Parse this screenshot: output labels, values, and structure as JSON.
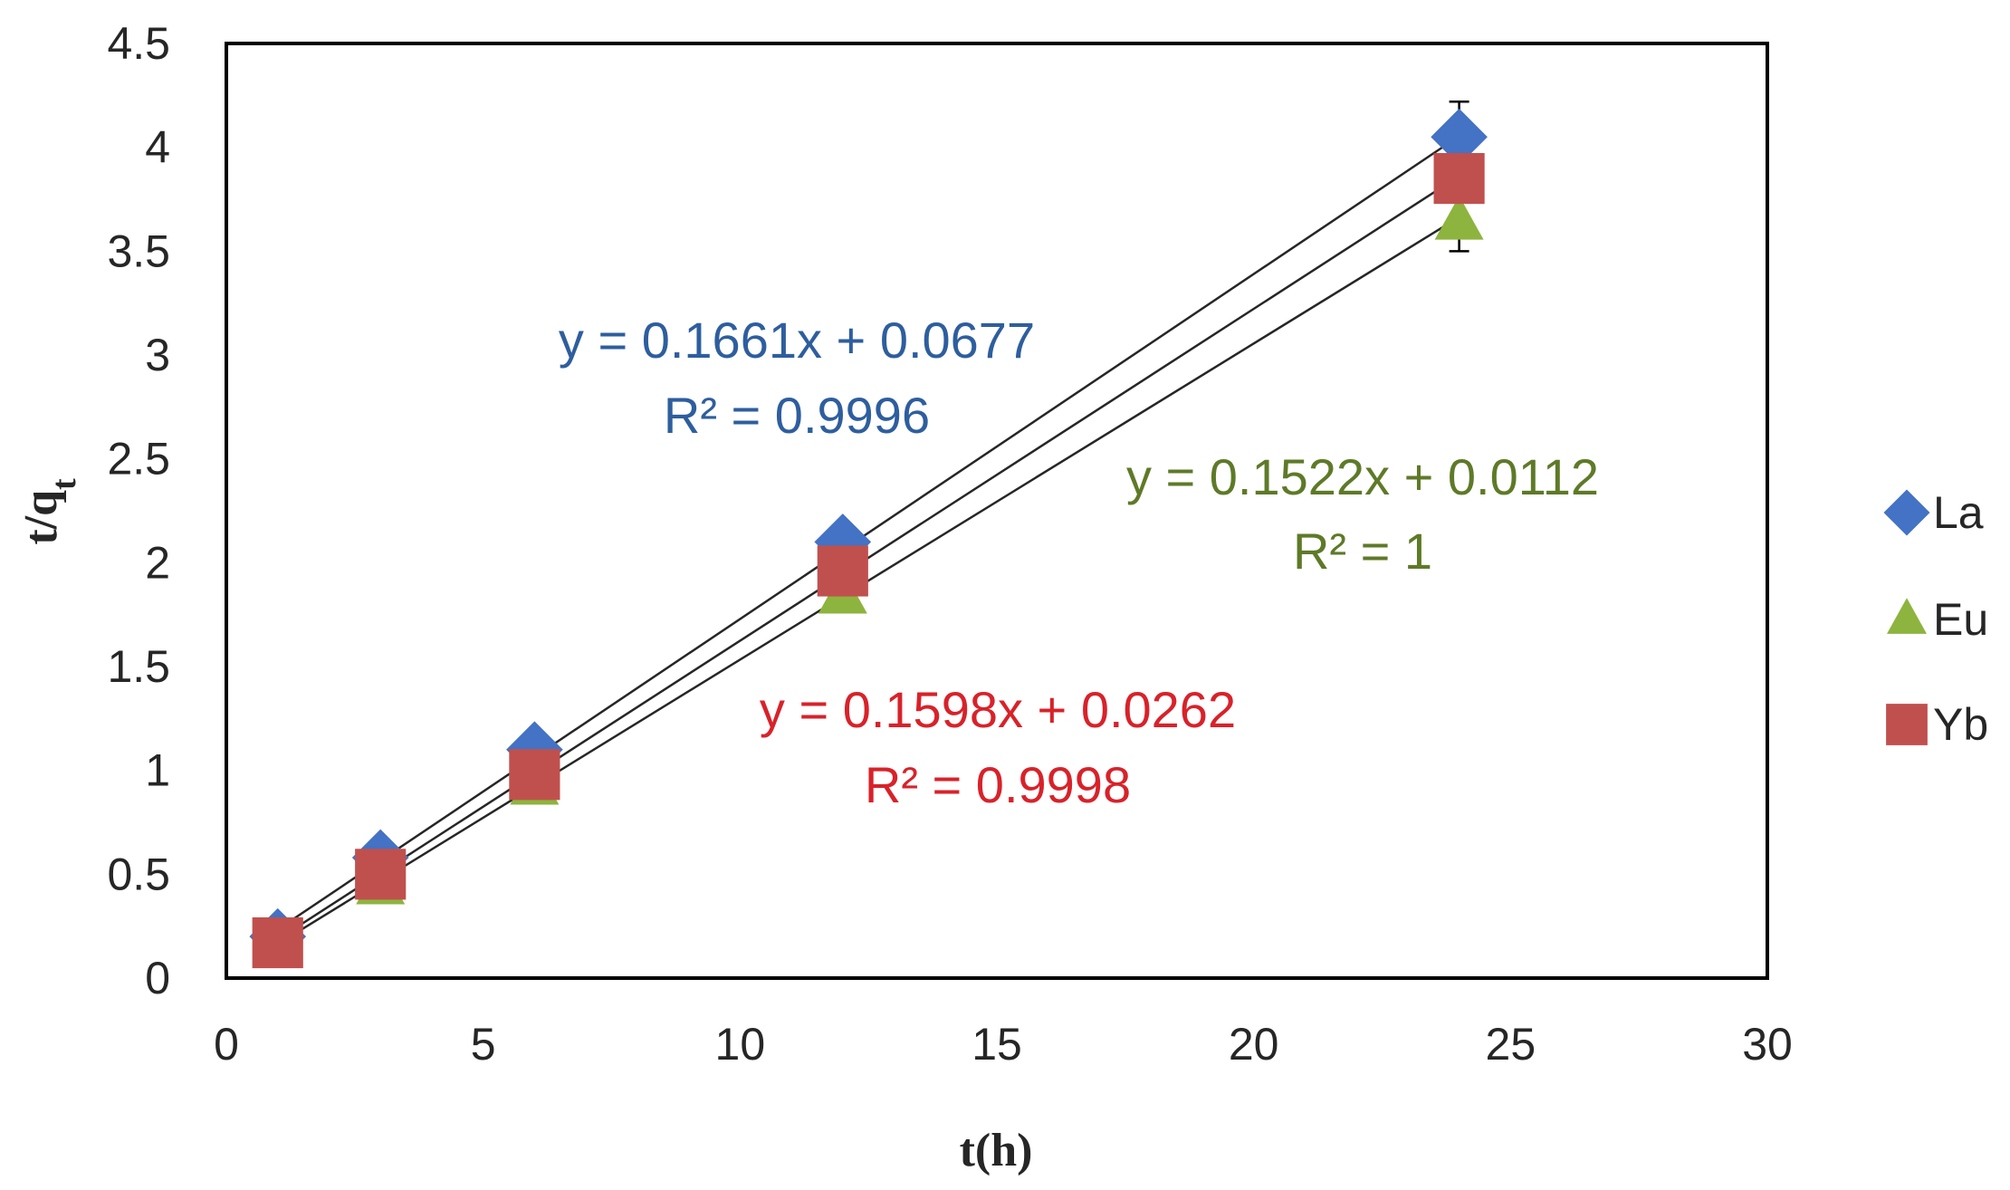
{
  "chart_data": {
    "type": "scatter",
    "xlabel": "t(h)",
    "ylabel": {
      "main": "t/q",
      "sub": "t"
    },
    "xlim": [
      0,
      30
    ],
    "ylim": [
      0,
      4.5
    ],
    "xticks": [
      "0",
      "5",
      "10",
      "15",
      "20",
      "25",
      "30"
    ],
    "yticks": [
      "0",
      "0.5",
      "1",
      "1.5",
      "2",
      "2.5",
      "3",
      "3.5",
      "4",
      "4.5"
    ],
    "grid": false,
    "legend_position": "right",
    "series": [
      {
        "name": "La",
        "marker": "diamond",
        "color": "#4472C4",
        "x": [
          1,
          3,
          6,
          12,
          24
        ],
        "y": [
          0.2,
          0.58,
          1.1,
          2.1,
          4.05
        ],
        "error_bar": {
          "x": 24,
          "low": 3.5,
          "high": 4.22
        },
        "trendline": {
          "slope": 0.1661,
          "intercept": 0.0677,
          "x_range": [
            1,
            24
          ]
        },
        "equation": {
          "line1": "y = 0.1661x + 0.0677",
          "line2": "R² = 0.9996",
          "color": "#2E5E9E"
        }
      },
      {
        "name": "Eu",
        "marker": "triangle",
        "color": "#8DB43E",
        "x": [
          1,
          3,
          6,
          12,
          24
        ],
        "y": [
          0.16,
          0.44,
          0.92,
          1.84,
          3.64
        ],
        "trendline": {
          "slope": 0.1522,
          "intercept": 0.0112,
          "x_range": [
            1,
            24
          ]
        },
        "equation": {
          "line1": "y = 0.1522x + 0.0112",
          "line2": "R² = 1",
          "color": "#5E7A28"
        }
      },
      {
        "name": "Yb",
        "marker": "square",
        "color": "#C0504D",
        "x": [
          1,
          3,
          6,
          12,
          24
        ],
        "y": [
          0.17,
          0.5,
          0.98,
          1.96,
          3.85
        ],
        "trendline": {
          "slope": 0.1598,
          "intercept": 0.0262,
          "x_range": [
            1,
            24
          ]
        },
        "equation": {
          "line1": "y = 0.1598x + 0.0262",
          "line2": "R² = 0.9998",
          "color": "#D8222A"
        }
      }
    ],
    "legend": [
      "La",
      "Eu",
      "Yb"
    ]
  }
}
